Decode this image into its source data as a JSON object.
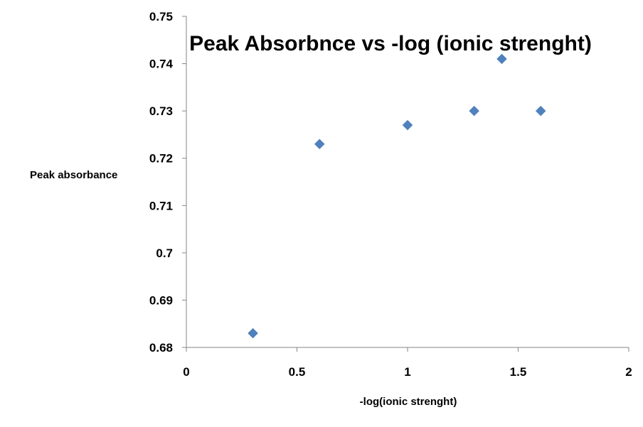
{
  "chart_data": {
    "type": "scatter",
    "title": "Peak Absorbnce vs -log (ionic strenght)",
    "xlabel": "-log(ionic strenght)",
    "ylabel": "Peak absorbance",
    "xlim": [
      0,
      2
    ],
    "ylim": [
      0.68,
      0.75
    ],
    "x_ticks": [
      "0",
      "0.5",
      "1",
      "1.5",
      "2"
    ],
    "y_ticks": [
      "0.68",
      "0.69",
      "0.7",
      "0.71",
      "0.72",
      "0.73",
      "0.74",
      "0.75"
    ],
    "grid": false,
    "legend": "none",
    "marker": "diamond",
    "marker_color": "#4f81bd",
    "series": [
      {
        "x": [
          0.301,
          0.602,
          1.0,
          1.301,
          1.426,
          1.602
        ],
        "y": [
          0.683,
          0.723,
          0.727,
          0.73,
          0.741,
          0.73
        ]
      }
    ]
  }
}
